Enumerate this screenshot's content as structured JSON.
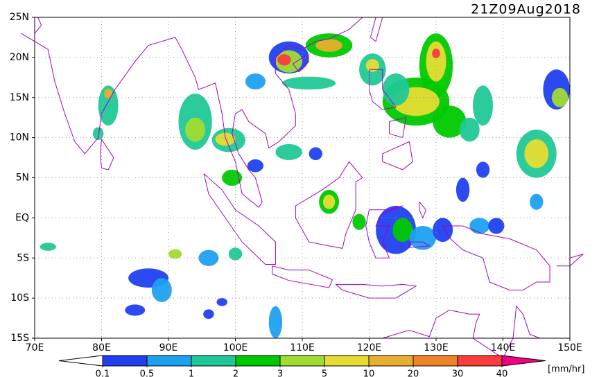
{
  "chart_data": {
    "type": "map",
    "title": "21Z09Aug2018",
    "xlim": [
      70,
      150
    ],
    "ylim": [
      -15,
      25
    ],
    "xticks": [
      {
        "value": 70,
        "label": "70E"
      },
      {
        "value": 80,
        "label": "80E"
      },
      {
        "value": 90,
        "label": "90E"
      },
      {
        "value": 100,
        "label": "100E"
      },
      {
        "value": 110,
        "label": "110E"
      },
      {
        "value": 120,
        "label": "120E"
      },
      {
        "value": 130,
        "label": "130E"
      },
      {
        "value": 140,
        "label": "140E"
      },
      {
        "value": 150,
        "label": "150E"
      }
    ],
    "yticks": [
      {
        "value": -15,
        "label": "15S"
      },
      {
        "value": -10,
        "label": "10S"
      },
      {
        "value": -5,
        "label": "5S"
      },
      {
        "value": 0,
        "label": "EQ"
      },
      {
        "value": 5,
        "label": "5N"
      },
      {
        "value": 10,
        "label": "10N"
      },
      {
        "value": 15,
        "label": "15N"
      },
      {
        "value": 20,
        "label": "20N"
      },
      {
        "value": 25,
        "label": "25N"
      }
    ],
    "grid": true,
    "coast_color": "#a000c8",
    "colorbar": {
      "unit": "[mm/hr]",
      "levels": [
        0.1,
        0.5,
        1,
        2,
        3,
        5,
        10,
        20,
        30,
        40
      ],
      "colors": [
        "#ffffff",
        "#2040f0",
        "#1ea0f0",
        "#20c896",
        "#00c800",
        "#a0dc32",
        "#e6dc32",
        "#e6af2d",
        "#f08228",
        "#fa3c3c",
        "#f00082"
      ]
    }
  }
}
